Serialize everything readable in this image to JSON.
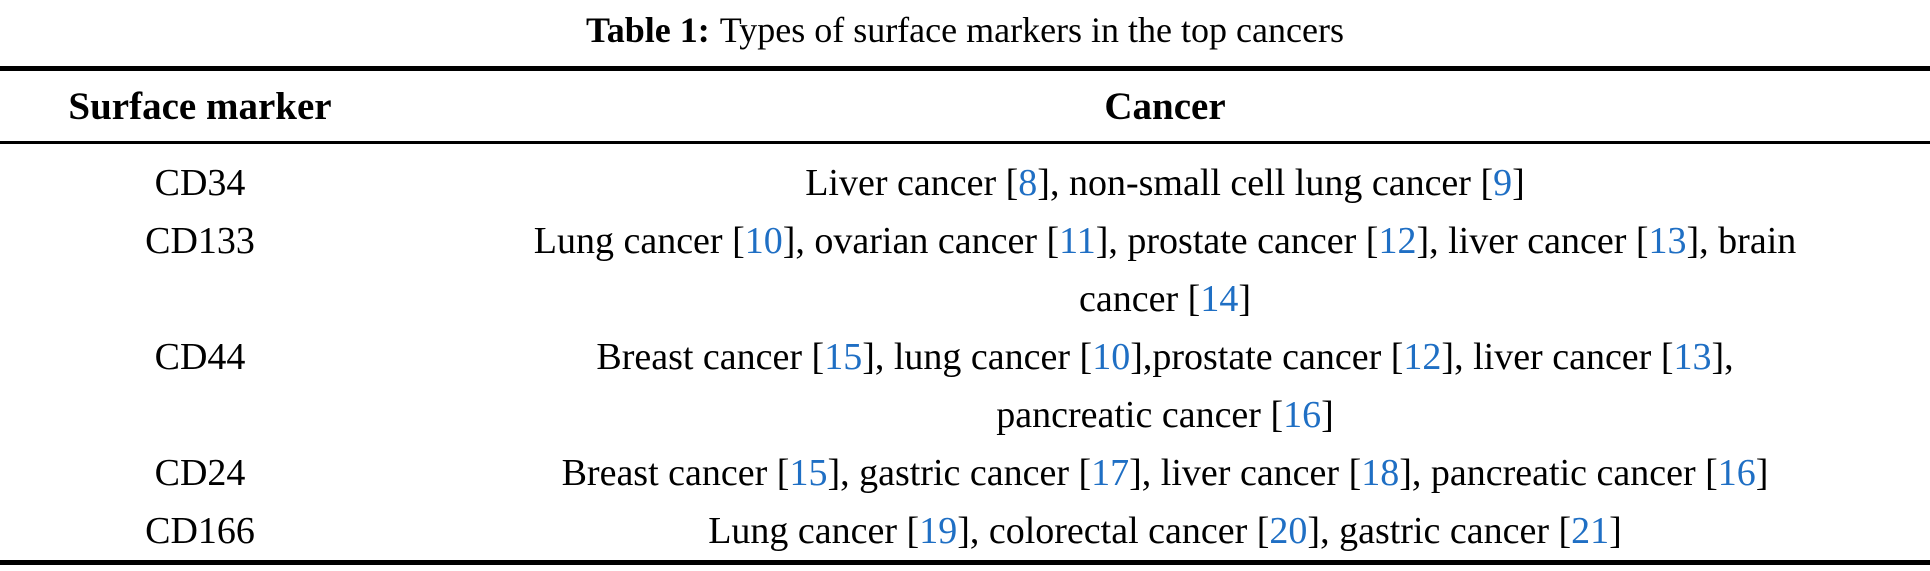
{
  "caption": {
    "label": "Table 1:",
    "text": "Types of surface markers in the top cancers"
  },
  "colors": {
    "text": "#000000",
    "ref": "#1f6fc4",
    "rule": "#000000"
  },
  "table": {
    "headers": [
      "Surface marker",
      "Cancer"
    ],
    "rows": [
      {
        "marker": "CD34",
        "cancer_lines": [
          [
            {
              "text": "Liver cancer ["
            },
            {
              "ref": "8"
            },
            {
              "text": "], non-small cell lung cancer ["
            },
            {
              "ref": "9"
            },
            {
              "text": "]"
            }
          ]
        ]
      },
      {
        "marker": "CD133",
        "cancer_lines": [
          [
            {
              "text": "Lung cancer ["
            },
            {
              "ref": "10"
            },
            {
              "text": "], ovarian cancer ["
            },
            {
              "ref": "11"
            },
            {
              "text": "], prostate cancer ["
            },
            {
              "ref": "12"
            },
            {
              "text": "], liver cancer ["
            },
            {
              "ref": "13"
            },
            {
              "text": "], brain"
            }
          ],
          [
            {
              "text": "cancer ["
            },
            {
              "ref": "14"
            },
            {
              "text": "]"
            }
          ]
        ]
      },
      {
        "marker": "CD44",
        "cancer_lines": [
          [
            {
              "text": "Breast cancer ["
            },
            {
              "ref": "15"
            },
            {
              "text": "], lung cancer ["
            },
            {
              "ref": "10"
            },
            {
              "text": "],prostate cancer ["
            },
            {
              "ref": "12"
            },
            {
              "text": "], liver cancer ["
            },
            {
              "ref": "13"
            },
            {
              "text": "],"
            }
          ],
          [
            {
              "text": "pancreatic cancer ["
            },
            {
              "ref": "16"
            },
            {
              "text": "]"
            }
          ]
        ]
      },
      {
        "marker": "CD24",
        "cancer_lines": [
          [
            {
              "text": "Breast cancer ["
            },
            {
              "ref": "15"
            },
            {
              "text": "], gastric cancer ["
            },
            {
              "ref": "17"
            },
            {
              "text": "], liver cancer ["
            },
            {
              "ref": "18"
            },
            {
              "text": "], pancreatic cancer ["
            },
            {
              "ref": "16"
            },
            {
              "text": "]"
            }
          ]
        ]
      },
      {
        "marker": "CD166",
        "cancer_lines": [
          [
            {
              "text": "Lung cancer ["
            },
            {
              "ref": "19"
            },
            {
              "text": "], colorectal cancer ["
            },
            {
              "ref": "20"
            },
            {
              "text": "], gastric cancer ["
            },
            {
              "ref": "21"
            },
            {
              "text": "]"
            }
          ]
        ]
      }
    ]
  }
}
